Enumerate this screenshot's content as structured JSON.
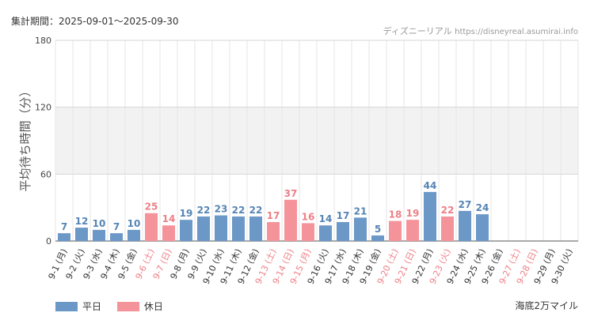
{
  "header": {
    "period_text": "集計期間：2025-09-01～2025-09-30",
    "credit_site": "ディズニーリアル",
    "credit_url": "https://disneyreal.asumirai.info"
  },
  "footer": {
    "area_name": "海底2万マイル"
  },
  "legend": [
    {
      "label": "平日",
      "color": "#6b98c6"
    },
    {
      "label": "休日",
      "color": "#f5939a"
    }
  ],
  "chart_data": {
    "type": "bar",
    "ylabel": "平均待ち時間（分）",
    "xlabel": "",
    "ylim": [
      0,
      180
    ],
    "yticks": [
      0,
      60,
      120,
      180
    ],
    "grid": true,
    "legend_position": "bottom-left",
    "colors": {
      "weekday": "#6b98c6",
      "holiday": "#f5939a",
      "weekday_text": "#5585b5",
      "holiday_text": "#ee7f86"
    },
    "categories": [
      "9-1 (月)",
      "9-2 (火)",
      "9-3 (水)",
      "9-4 (木)",
      "9-5 (金)",
      "9-6 (土)",
      "9-7 (日)",
      "9-8 (月)",
      "9-9 (火)",
      "9-10 (水)",
      "9-11 (木)",
      "9-12 (金)",
      "9-13 (土)",
      "9-14 (日)",
      "9-15 (月)",
      "9-16 (火)",
      "9-17 (水)",
      "9-18 (木)",
      "9-19 (金)",
      "9-20 (土)",
      "9-21 (日)",
      "9-22 (月)",
      "9-23 (火)",
      "9-24 (水)",
      "9-25 (木)",
      "9-26 (金)",
      "9-27 (土)",
      "9-28 (日)",
      "9-29 (月)",
      "9-30 (火)"
    ],
    "values": [
      7,
      12,
      10,
      7,
      10,
      25,
      14,
      19,
      22,
      23,
      22,
      22,
      17,
      37,
      16,
      14,
      17,
      21,
      5,
      18,
      19,
      44,
      22,
      27,
      24,
      null,
      null,
      null,
      null,
      null
    ],
    "holiday": [
      false,
      false,
      false,
      false,
      false,
      true,
      true,
      false,
      false,
      false,
      false,
      false,
      true,
      true,
      true,
      false,
      false,
      false,
      false,
      true,
      true,
      false,
      true,
      false,
      false,
      false,
      true,
      true,
      false,
      false
    ]
  }
}
